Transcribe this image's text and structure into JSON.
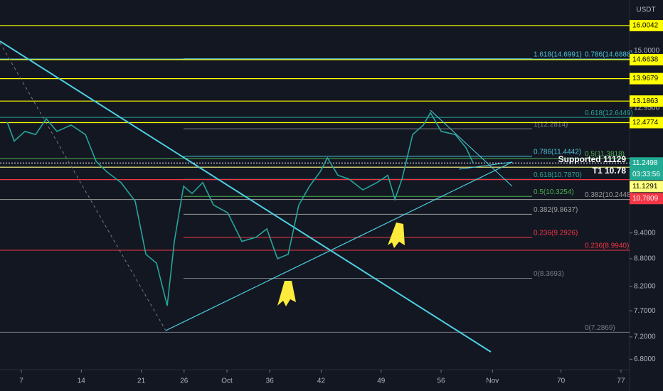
{
  "chart_data": {
    "type": "line",
    "y_unit": "USDT",
    "log": true,
    "xlim": [
      4.51,
      78.0
    ],
    "ylim": [
      6.62,
      17.09
    ],
    "xticks": [
      7,
      14,
      21,
      26,
      {
        "value": 31,
        "label": "Oct"
      },
      36,
      42,
      49,
      56,
      {
        "value": 62,
        "label": "Nov"
      },
      70,
      77
    ],
    "yticks": [
      {
        "value": 15,
        "label": "15.0000"
      },
      {
        "value": 12.95,
        "label": "12.9500"
      },
      {
        "value": 9.4,
        "label": "9.4000"
      },
      {
        "value": 8.8,
        "label": "8.8000"
      },
      {
        "value": 8.2,
        "label": "8.2000"
      },
      {
        "value": 7.7,
        "label": "7.7000"
      },
      {
        "value": 7.2,
        "label": "7.2000"
      },
      {
        "value": 6.8,
        "label": "6.8000"
      }
    ],
    "series": [
      {
        "color": "#26a69a",
        "x": [
          5.34,
          6.17,
          7.42,
          8.66,
          9.91,
          11.15,
          12.82,
          14.48,
          15.72,
          16.97,
          18.63,
          20.29,
          21.54,
          22.78,
          24.03,
          24.86,
          25.94,
          26.93,
          28.18,
          29.43,
          31.09,
          32.75,
          34.41,
          35.66,
          36.9,
          38.15,
          39.39,
          40.64,
          41.89,
          42.72,
          43.96,
          45.21,
          46.87,
          48.53,
          49.78,
          50.61,
          51.44,
          52.68,
          53.93,
          54.76,
          56.01,
          57.67,
          58.91,
          59.74
        ],
        "values": [
          12.5,
          11.9,
          12.2,
          12.1,
          12.6,
          12.2,
          12.4,
          12.1,
          11.3,
          11.0,
          10.7,
          10.2,
          8.9,
          8.7,
          7.8,
          9.2,
          10.6,
          10.4,
          10.7,
          10.1,
          9.9,
          9.2,
          9.3,
          9.5,
          8.8,
          8.9,
          10.1,
          10.6,
          11.0,
          11.4,
          10.9,
          10.8,
          10.5,
          10.7,
          10.9,
          10.25,
          10.8,
          12.1,
          12.4,
          12.8,
          12.2,
          12.1,
          11.7,
          11.25
        ]
      }
    ],
    "price_labels": [
      {
        "value": 16.0042,
        "color": "#ffff00",
        "text_color": "#000000"
      },
      {
        "value": 14.6638,
        "color": "#ffff00",
        "text_color": "#000000"
      },
      {
        "value": 13.9679,
        "color": "#ffff00",
        "text_color": "#000000"
      },
      {
        "value": 13.1863,
        "color": "#ffff00",
        "text_color": "#000000"
      },
      {
        "value": 12.4774,
        "color": "#ffff00",
        "text_color": "#000000"
      },
      {
        "value": 11.2498,
        "color": "#22ab94",
        "text_color": "#ffffff",
        "countdown": "03:33:56"
      },
      {
        "value": 11.1291,
        "color": "#ffff80",
        "text_color": "#000000"
      },
      {
        "value": 10.7809,
        "color": "#f23645",
        "text_color": "#ffffff"
      }
    ],
    "fib_a": [
      {
        "label": "1.618(14.6991)",
        "price": 14.6991,
        "color": "#4fc3d9"
      },
      {
        "label": "1(12.2814)",
        "price": 12.2814,
        "color": "#787b86"
      },
      {
        "label": "0.786(11.4442)",
        "price": 11.4442,
        "color": "#4fc3d9"
      },
      {
        "label": "0.618(10.7870)",
        "price": 10.787,
        "color": "#26a69a"
      },
      {
        "label": "0.5(10.3254)",
        "price": 10.3254,
        "color": "#4caf50"
      },
      {
        "label": "0.382(9.8637)",
        "price": 9.8637,
        "color": "#9e9e9e"
      },
      {
        "label": "0.236(9.2926)",
        "price": 9.2926,
        "color": "#f23645"
      },
      {
        "label": "0(8.3693)",
        "price": 8.3693,
        "color": "#787b86"
      }
    ],
    "fib_b": [
      {
        "label": "0.786(14.6888)",
        "price": 14.6888,
        "color": "#4fc3d9"
      },
      {
        "label": "0.618(12.6449)",
        "price": 12.6449,
        "color": "#26a69a"
      },
      {
        "label": "0.5(11.3818)",
        "price": 11.3818,
        "color": "#4caf50"
      },
      {
        "label": "0.382(10.2448)",
        "price": 10.2448,
        "color": "#9e9e9e"
      },
      {
        "label": "0.236(8.9940)",
        "price": 8.994,
        "color": "#f23645"
      },
      {
        "label": "0(7.2869)",
        "price": 7.2869,
        "color": "#787b86"
      }
    ],
    "annotations": [
      "Supported 11129",
      "T1 10.78"
    ]
  }
}
